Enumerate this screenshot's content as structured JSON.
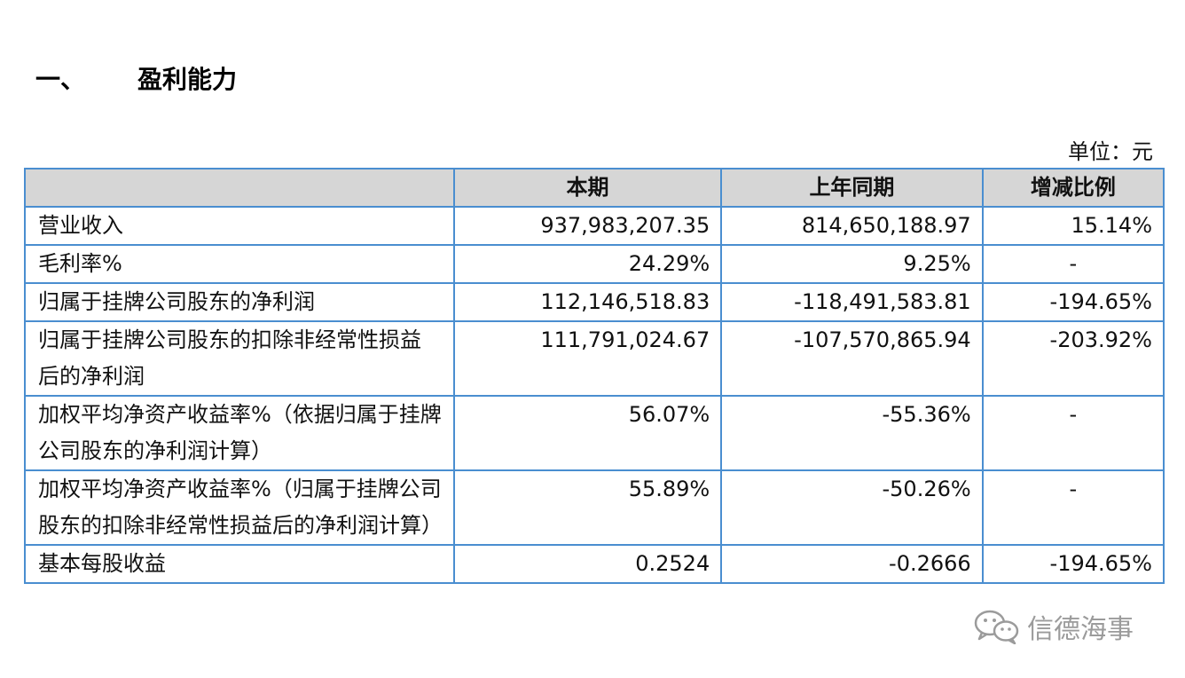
{
  "section": {
    "number": "一、",
    "title": "盈利能力"
  },
  "unit_label": "单位：元",
  "table": {
    "headers": [
      "",
      "本期",
      "上年同期",
      "增减比例"
    ],
    "rows": [
      {
        "label": "营业收入",
        "current": "937,983,207.35",
        "prior": "814,650,188.97",
        "change": "15.14%"
      },
      {
        "label": "毛利率%",
        "current": "24.29%",
        "prior": "9.25%",
        "change": "-"
      },
      {
        "label": "归属于挂牌公司股东的净利润",
        "current": "112,146,518.83",
        "prior": "-118,491,583.81",
        "change": "-194.65%"
      },
      {
        "label": "归属于挂牌公司股东的扣除非经常性损益后的净利润",
        "current": "111,791,024.67",
        "prior": "-107,570,865.94",
        "change": "-203.92%"
      },
      {
        "label": "加权平均净资产收益率%（依据归属于挂牌公司股东的净利润计算）",
        "current": "56.07%",
        "prior": "-55.36%",
        "change": "-"
      },
      {
        "label": "加权平均净资产收益率%（归属于挂牌公司股东的扣除非经常性损益后的净利润计算）",
        "current": "55.89%",
        "prior": "-50.26%",
        "change": "-"
      },
      {
        "label": "基本每股收益",
        "current": "0.2524",
        "prior": "-0.2666",
        "change": "-194.65%"
      }
    ]
  },
  "watermark": {
    "text": "信德海事",
    "icon": "wechat-icon"
  }
}
